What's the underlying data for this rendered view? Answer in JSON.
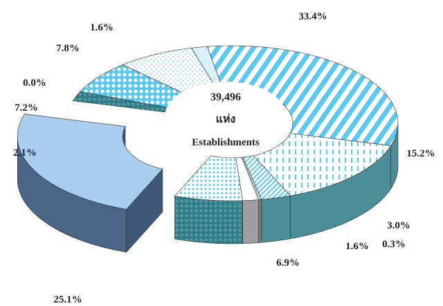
{
  "chart_data": {
    "type": "pie",
    "style": "3d-donut-with-exploded-slice",
    "center_label": {
      "value": "39,496",
      "unit": "แห่ง",
      "caption": "Establishments"
    },
    "slices": [
      {
        "label": "33.4%",
        "value": 33.4,
        "color": "#5bc8ee",
        "pattern": "diagonal-stripes"
      },
      {
        "label": "15.2%",
        "value": 15.2,
        "color": "#5bc8ee",
        "pattern": "vertical-dashes"
      },
      {
        "label": "3.0%",
        "value": 3.0,
        "color": "#5bc8ee",
        "pattern": "fine-diagonal"
      },
      {
        "label": "0.3%",
        "value": 0.3,
        "color": "#c8c8c8",
        "pattern": "solid"
      },
      {
        "label": "1.6%",
        "value": 1.6,
        "color": "#ffffff",
        "pattern": "solid"
      },
      {
        "label": "6.9%",
        "value": 6.9,
        "color": "#5bc8ee",
        "pattern": "dots"
      },
      {
        "label": "25.1%",
        "value": 25.1,
        "color": "#a7cdef",
        "pattern": "solid",
        "exploded": true
      },
      {
        "label": "2.1%",
        "value": 2.1,
        "color": "#2f7e8a",
        "pattern": "dark-dots"
      },
      {
        "label": "7.2%",
        "value": 7.2,
        "color": "#5bc8ee",
        "pattern": "bubbles"
      },
      {
        "label": "0.0%",
        "value": 0.0,
        "color": "#5bc8ee",
        "pattern": "bricks"
      },
      {
        "label": "7.8%",
        "value": 7.8,
        "color": "#5bc8ee",
        "pattern": "confetti"
      },
      {
        "label": "1.6%",
        "value": 1.6,
        "color": "#d9f1fb",
        "pattern": "solid"
      }
    ]
  }
}
